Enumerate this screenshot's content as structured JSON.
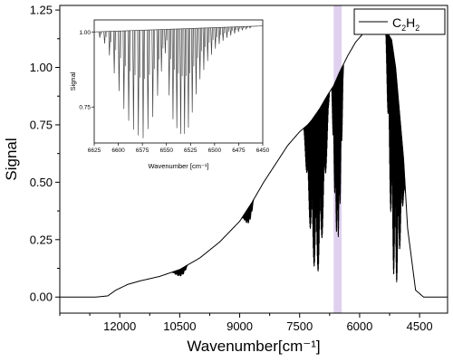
{
  "chart_data": [
    {
      "type": "line",
      "xlabel": "Wavenumber[cm⁻¹]",
      "ylabel": "Signal",
      "xlim": [
        13500,
        3800
      ],
      "ylim": [
        -0.07,
        1.27
      ],
      "x_ticks": [
        12000,
        10500,
        9000,
        7500,
        6000,
        4500
      ],
      "x_tick_labels": [
        "12000",
        "10500",
        "9000",
        "7500",
        "6000",
        "4500"
      ],
      "y_ticks": [
        0.0,
        0.25,
        0.5,
        0.75,
        1.0,
        1.25
      ],
      "y_tick_labels": [
        "0.00",
        "0.25",
        "0.50",
        "0.75",
        "1.00",
        "1.25"
      ],
      "highlight_band": [
        6650,
        6450
      ],
      "highlight_color": "#d9c8ec",
      "line_color": "#000000",
      "grid": false,
      "legend_position": "top-right",
      "series": [
        {
          "name": "C2H2",
          "legend_label_base": "C",
          "legend_sub1": "2",
          "legend_mid": "H",
          "legend_sub2": "2",
          "x": [
            13500,
            12600,
            12300,
            12100,
            11800,
            11500,
            11000,
            10500,
            10000,
            9500,
            9000,
            8700,
            8400,
            8100,
            7800,
            7500,
            7300,
            7200,
            7000,
            6800,
            6650,
            6500,
            6300,
            6100,
            5900,
            5700,
            5400,
            5300,
            5200,
            5100,
            4900,
            4800,
            4600,
            4400,
            4000,
            3800
          ],
          "values": [
            0.0,
            0.0,
            0.005,
            0.03,
            0.055,
            0.07,
            0.09,
            0.12,
            0.17,
            0.24,
            0.33,
            0.41,
            0.5,
            0.58,
            0.66,
            0.72,
            0.75,
            0.77,
            0.82,
            0.88,
            0.92,
            0.98,
            1.05,
            1.11,
            1.15,
            1.17,
            1.17,
            1.15,
            1.12,
            1.0,
            0.6,
            0.3,
            0.03,
            0.0,
            0.0,
            0.0
          ]
        }
      ],
      "absorption_regions": [
        {
          "from": 10700,
          "to": 10300,
          "min_value": 0.09
        },
        {
          "from": 8950,
          "to": 8650,
          "min_value": 0.32
        },
        {
          "from": 7400,
          "to": 6750,
          "min_value": 0.1
        },
        {
          "from": 6700,
          "to": 6400,
          "min_value": 0.25
        },
        {
          "from": 5350,
          "to": 4850,
          "min_value": 0.05
        }
      ]
    },
    {
      "type": "line",
      "role": "inset",
      "xlabel": "Wavenumber [cm⁻¹]",
      "ylabel": "Signal",
      "xlim": [
        6625,
        6450
      ],
      "ylim": [
        0.63,
        1.04
      ],
      "x_ticks": [
        6625,
        6600,
        6575,
        6550,
        6525,
        6500,
        6475,
        6450
      ],
      "x_tick_labels": [
        "6625",
        "6600",
        "6575",
        "6550",
        "6525",
        "6500",
        "6475",
        "6450"
      ],
      "y_ticks": [
        0.75,
        1.0
      ],
      "y_tick_labels": [
        "0.75",
        "1.00"
      ],
      "line_color": "#444444",
      "baseline": 1.0,
      "lines": [
        {
          "x": 6620,
          "depth": 0.02
        },
        {
          "x": 6615,
          "depth": 0.04
        },
        {
          "x": 6610,
          "depth": 0.08
        },
        {
          "x": 6605,
          "depth": 0.14
        },
        {
          "x": 6600,
          "depth": 0.2
        },
        {
          "x": 6595,
          "depth": 0.26
        },
        {
          "x": 6590,
          "depth": 0.3
        },
        {
          "x": 6585,
          "depth": 0.33
        },
        {
          "x": 6580,
          "depth": 0.35
        },
        {
          "x": 6575,
          "depth": 0.36
        },
        {
          "x": 6570,
          "depth": 0.33
        },
        {
          "x": 6565,
          "depth": 0.29
        },
        {
          "x": 6560,
          "depth": 0.22
        },
        {
          "x": 6556,
          "depth": 0.14
        },
        {
          "x": 6552,
          "depth": 0.08
        },
        {
          "x": 6548,
          "depth": 0.22
        },
        {
          "x": 6544,
          "depth": 0.3
        },
        {
          "x": 6540,
          "depth": 0.33
        },
        {
          "x": 6536,
          "depth": 0.35
        },
        {
          "x": 6532,
          "depth": 0.35
        },
        {
          "x": 6528,
          "depth": 0.33
        },
        {
          "x": 6524,
          "depth": 0.28
        },
        {
          "x": 6520,
          "depth": 0.22
        },
        {
          "x": 6516,
          "depth": 0.17
        },
        {
          "x": 6512,
          "depth": 0.14
        },
        {
          "x": 6508,
          "depth": 0.11
        },
        {
          "x": 6504,
          "depth": 0.09
        },
        {
          "x": 6500,
          "depth": 0.07
        },
        {
          "x": 6496,
          "depth": 0.055
        },
        {
          "x": 6492,
          "depth": 0.045
        },
        {
          "x": 6488,
          "depth": 0.035
        },
        {
          "x": 6484,
          "depth": 0.028
        },
        {
          "x": 6480,
          "depth": 0.022
        },
        {
          "x": 6476,
          "depth": 0.017
        },
        {
          "x": 6472,
          "depth": 0.012
        },
        {
          "x": 6468,
          "depth": 0.008
        },
        {
          "x": 6464,
          "depth": 0.005
        }
      ]
    }
  ]
}
